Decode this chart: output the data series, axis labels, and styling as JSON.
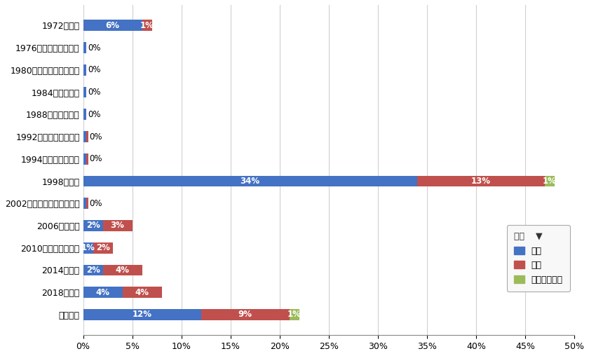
{
  "categories": [
    "1972／札幌",
    "1976／インスブルック",
    "1980／レークプラシッド",
    "1984／サラエボ",
    "1988／カルガリー",
    "1992／アルベールビル",
    "1994／リレハンメル",
    "1998／長野",
    "2002／ソルトレークシティ",
    "2006／トリノ",
    "2010／バンクーバー",
    "2014／ソチ",
    "2018／平昌",
    "特になし"
  ],
  "male": [
    6,
    0.3,
    0.3,
    0.3,
    0.3,
    0.3,
    0.3,
    34,
    0.3,
    2,
    1,
    2,
    4,
    12
  ],
  "female": [
    1,
    0,
    0,
    0,
    0,
    0.2,
    0.2,
    13,
    0.2,
    3,
    2,
    4,
    4,
    9
  ],
  "other": [
    0,
    0,
    0,
    0,
    0,
    0,
    0,
    1,
    0,
    0,
    0,
    0,
    0,
    1
  ],
  "male_label": [
    6,
    0,
    0,
    0,
    0,
    0,
    0,
    34,
    0,
    2,
    1,
    2,
    4,
    12
  ],
  "female_label": [
    1,
    0,
    0,
    0,
    0,
    0,
    0,
    13,
    0,
    3,
    2,
    4,
    4,
    9
  ],
  "other_label": [
    0,
    0,
    0,
    0,
    0,
    0,
    0,
    1,
    0,
    0,
    0,
    0,
    0,
    1
  ],
  "show_zero": [
    false,
    true,
    true,
    true,
    true,
    true,
    true,
    false,
    true,
    false,
    false,
    false,
    false,
    false
  ],
  "male_color": "#4472c4",
  "female_color": "#c0504d",
  "other_color": "#9bbb59",
  "legend_title": "性別",
  "legend_labels": [
    "男性",
    "女性",
    "教えたくない"
  ],
  "xlim": [
    0,
    50
  ],
  "xtick_step": 5,
  "background_color": "#ffffff",
  "grid_color": "#d0d0d0",
  "bar_height": 0.5,
  "figsize": [
    8.4,
    5.08
  ],
  "dpi": 100
}
